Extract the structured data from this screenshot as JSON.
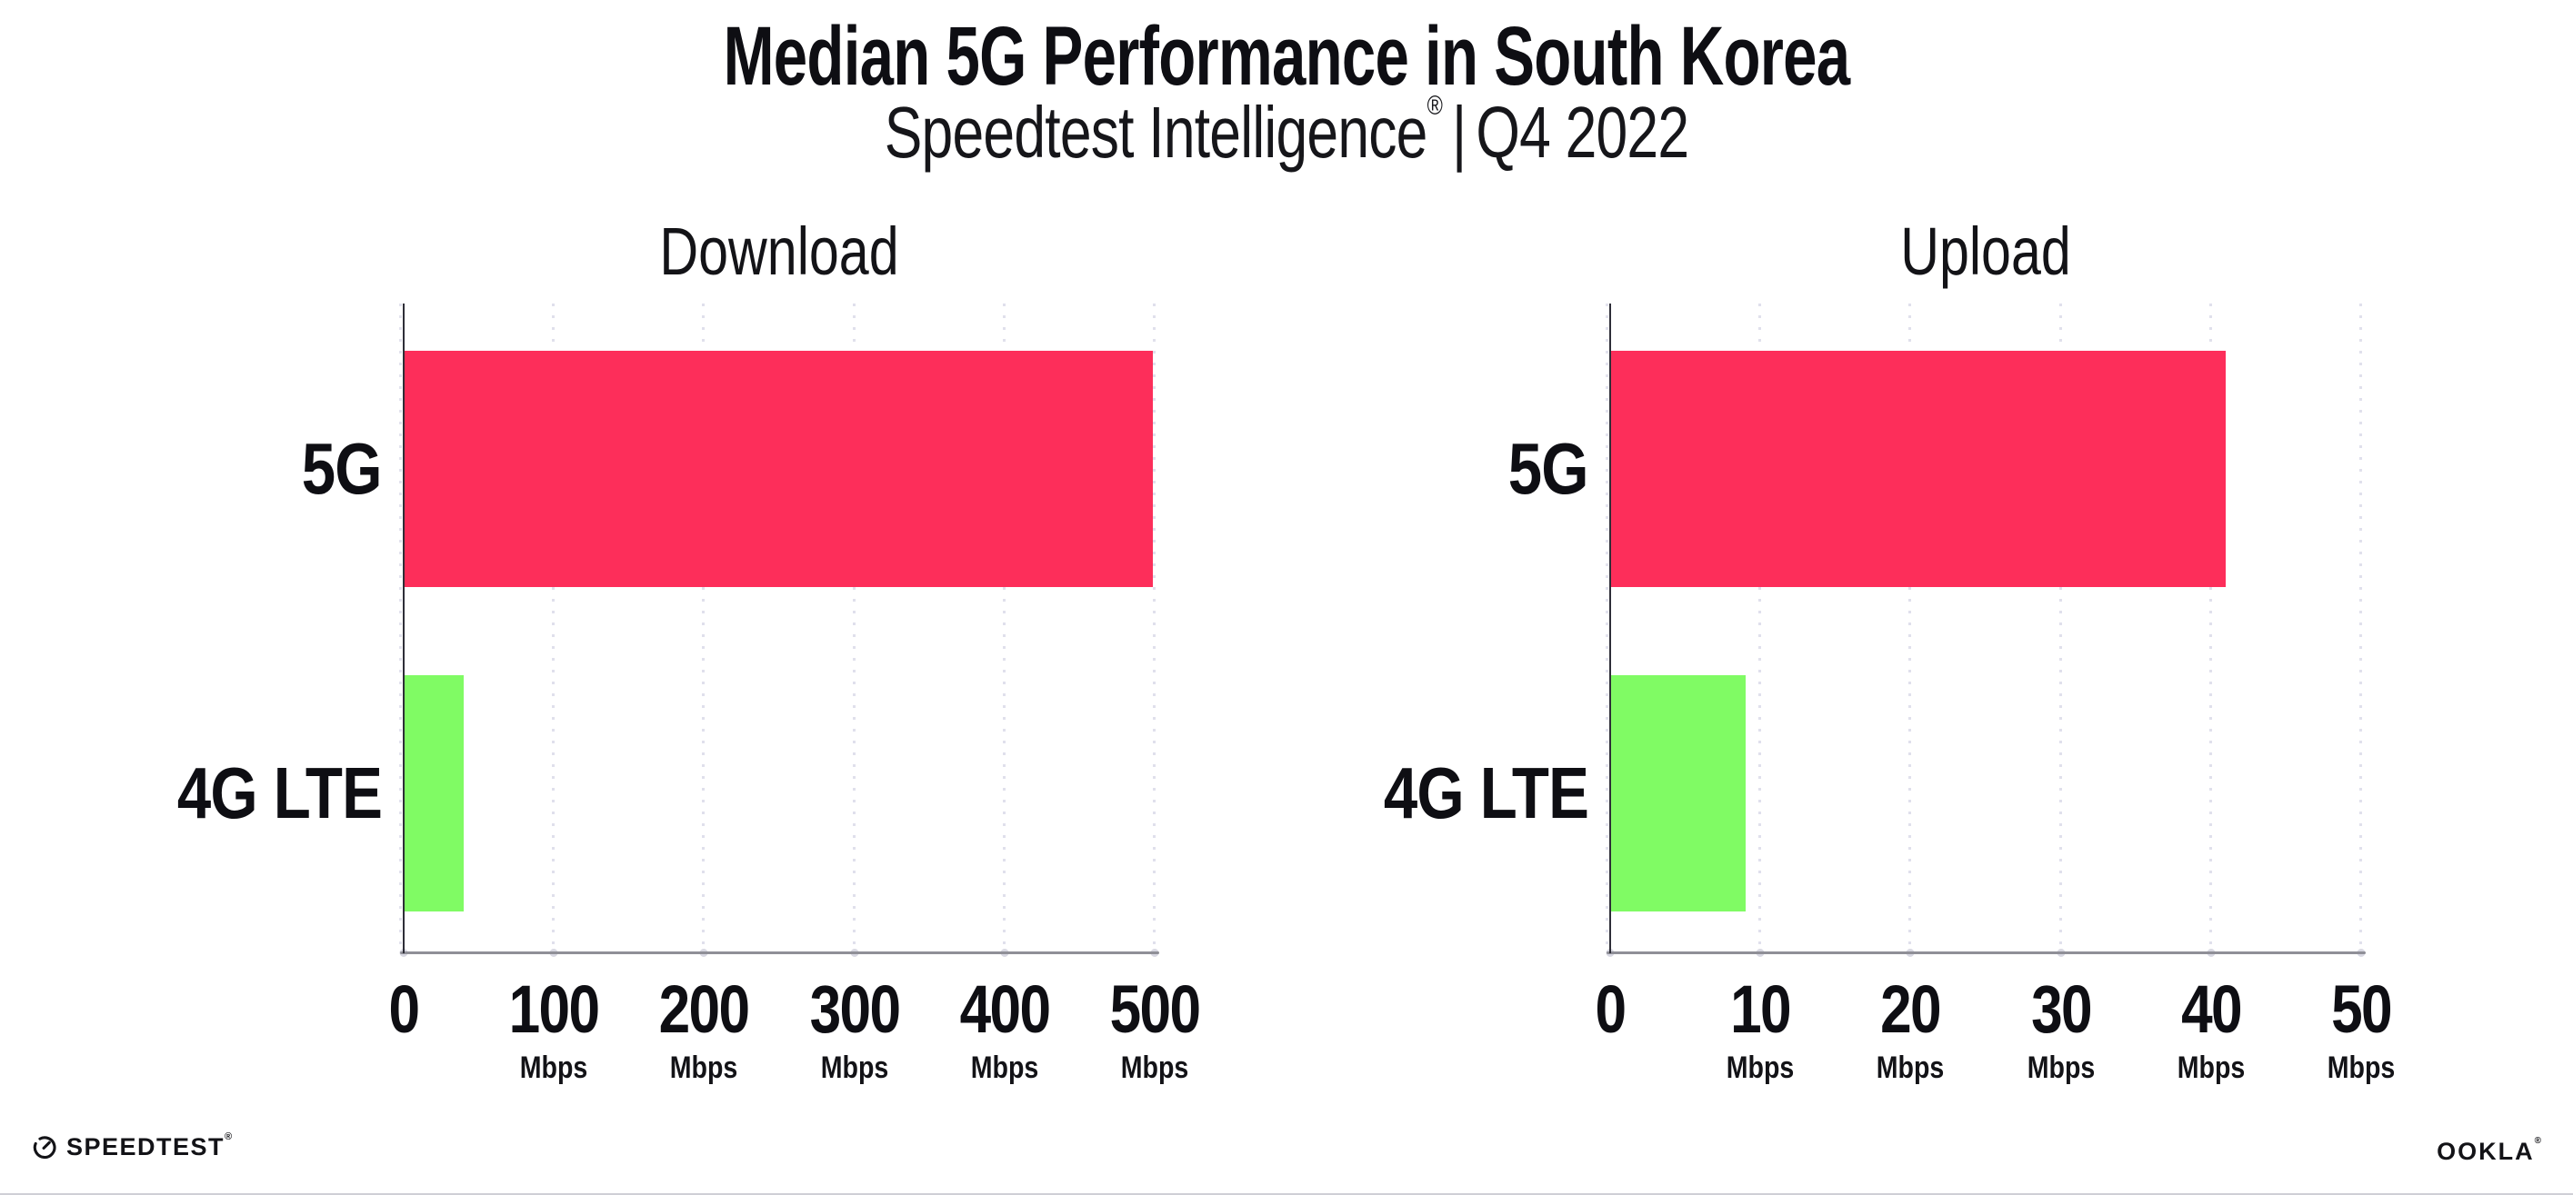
{
  "header": {
    "title": "Median 5G Performance in South Korea",
    "subtitle_brand": "Speedtest Intelligence",
    "subtitle_reg": "®",
    "subtitle_separator": "|",
    "subtitle_period": "Q4 2022"
  },
  "chart_data": [
    {
      "type": "bar",
      "orientation": "horizontal",
      "title": "Download",
      "categories": [
        "5G",
        "4G LTE"
      ],
      "values": [
        499,
        40
      ],
      "unit": "Mbps",
      "xlim": [
        0,
        500
      ],
      "xticks": [
        0,
        100,
        200,
        300,
        400,
        500
      ],
      "bar_colors": [
        "#fd2e5a",
        "#80fb64"
      ],
      "grid": "vertical-dotted",
      "legend": "none"
    },
    {
      "type": "bar",
      "orientation": "horizontal",
      "title": "Upload",
      "categories": [
        "5G",
        "4G LTE"
      ],
      "values": [
        41,
        9
      ],
      "unit": "Mbps",
      "xlim": [
        0,
        50
      ],
      "xticks": [
        0,
        10,
        20,
        30,
        40,
        50
      ],
      "bar_colors": [
        "#fd2e5a",
        "#80fb64"
      ],
      "grid": "vertical-dotted",
      "legend": "none"
    }
  ],
  "footer": {
    "speedtest_label": "SPEEDTEST",
    "speedtest_reg": "®",
    "ookla_label": "OOKLA",
    "ookla_reg": "®"
  },
  "colors": {
    "bar_5g": "#fd2e5a",
    "bar_4g_lte": "#80fb64",
    "gridline": "#e0e0ec",
    "x_axis": "#8f8f97",
    "y_axis": "#2e2e38",
    "tick_dot": "#d8d8e2",
    "text": "#0e0e13",
    "background": "#ffffff"
  }
}
